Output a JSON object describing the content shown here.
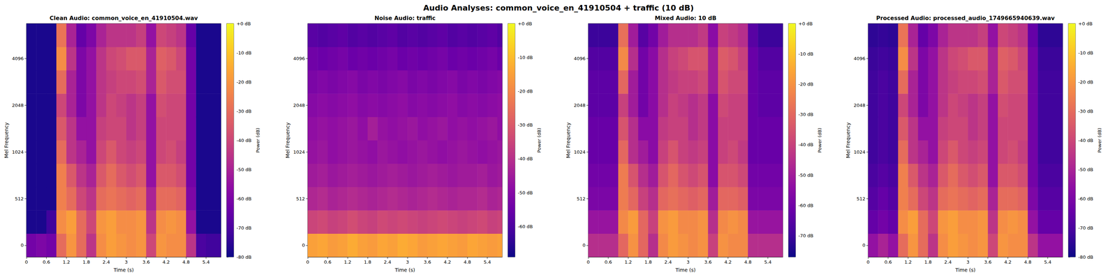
{
  "title": "Audio Analyses: common_voice_en_41910504 + traffic (10 dB)",
  "chart_data": [
    {
      "type": "heatmap",
      "title": "Clean Audio: common_voice_en_41910504.wav",
      "x_label": "Time (s)",
      "y_label": "Mel Frequency",
      "xlim": [
        0,
        5.85
      ],
      "xticks": [
        0,
        0.6,
        1.2,
        1.8,
        2.4,
        3,
        3.6,
        4.2,
        4.8,
        5.4
      ],
      "x_edges": [
        0,
        0.3,
        0.6,
        0.9,
        1.2,
        1.5,
        1.8,
        2.1,
        2.4,
        2.7,
        3,
        3.3,
        3.6,
        3.9,
        4.2,
        4.5,
        4.8,
        5.1,
        5.4,
        5.7,
        5.85
      ],
      "y_categories": [
        0,
        null,
        512,
        null,
        1024,
        null,
        2048,
        null,
        4096,
        null
      ],
      "cells": [
        [
          -62,
          -60,
          -62,
          -30,
          -20,
          -30,
          -45,
          -22,
          -18,
          -20,
          -22,
          -20,
          -40,
          -20,
          -22,
          -22,
          -45,
          -70,
          -72,
          -72
        ],
        [
          -78,
          -78,
          -72,
          -22,
          -18,
          -30,
          -40,
          -20,
          -18,
          -22,
          -22,
          -20,
          -45,
          -22,
          -20,
          -22,
          -55,
          -78,
          -78,
          -78
        ],
        [
          -78,
          -78,
          -78,
          -25,
          -30,
          -40,
          -45,
          -30,
          -28,
          -30,
          -32,
          -30,
          -50,
          -30,
          -30,
          -32,
          -60,
          -78,
          -78,
          -78
        ],
        [
          -78,
          -78,
          -78,
          -25,
          -35,
          -45,
          -50,
          -35,
          -30,
          -35,
          -38,
          -35,
          -55,
          -35,
          -35,
          -38,
          -62,
          -78,
          -78,
          -78
        ],
        [
          -78,
          -78,
          -78,
          -30,
          -45,
          -50,
          -55,
          -40,
          -35,
          -40,
          -42,
          -40,
          -55,
          -40,
          -38,
          -42,
          -62,
          -78,
          -78,
          -78
        ],
        [
          -78,
          -78,
          -78,
          -35,
          -45,
          -55,
          -55,
          -42,
          -40,
          -40,
          -45,
          -42,
          -55,
          -40,
          -40,
          -40,
          -62,
          -78,
          -78,
          -78
        ],
        [
          -78,
          -78,
          -78,
          -40,
          -50,
          -60,
          -55,
          -45,
          -40,
          -42,
          -45,
          -42,
          -55,
          -38,
          -40,
          -40,
          -62,
          -78,
          -78,
          -78
        ],
        [
          -78,
          -78,
          -78,
          -30,
          -50,
          -60,
          -55,
          -45,
          -42,
          -40,
          -40,
          -38,
          -50,
          -35,
          -38,
          -38,
          -62,
          -78,
          -78,
          -78
        ],
        [
          -78,
          -78,
          -78,
          -22,
          -45,
          -60,
          -55,
          -45,
          -40,
          -38,
          -35,
          -35,
          -50,
          -33,
          -35,
          -40,
          -62,
          -78,
          -78,
          -78
        ],
        [
          -78,
          -78,
          -78,
          -28,
          -50,
          -65,
          -60,
          -50,
          -45,
          -45,
          -45,
          -42,
          -55,
          -40,
          -42,
          -45,
          -65,
          -78,
          -78,
          -78
        ]
      ],
      "color": "plasma",
      "colorbar": {
        "label": "Power (dB)",
        "range": [
          -80,
          0
        ],
        "ticks": [
          {
            "value": 0,
            "label": "+0 dB"
          },
          {
            "value": -10,
            "label": "-10 dB"
          },
          {
            "value": -20,
            "label": "-20 dB"
          },
          {
            "value": -30,
            "label": "-30 dB"
          },
          {
            "value": -40,
            "label": "-40 dB"
          },
          {
            "value": -50,
            "label": "-50 dB"
          },
          {
            "value": -60,
            "label": "-60 dB"
          },
          {
            "value": -70,
            "label": "-70 dB"
          },
          {
            "value": -80,
            "label": "-80 dB"
          }
        ]
      }
    },
    {
      "type": "heatmap",
      "title": "Noise Audio: traffic",
      "x_label": "Time (s)",
      "y_label": "Mel Frequency",
      "xlim": [
        0,
        5.85
      ],
      "xticks": [
        0,
        0.6,
        1.2,
        1.8,
        2.4,
        3,
        3.6,
        4.2,
        4.8,
        5.4
      ],
      "x_edges": [
        0,
        0.3,
        0.6,
        0.9,
        1.2,
        1.5,
        1.8,
        2.1,
        2.4,
        2.7,
        3,
        3.3,
        3.6,
        3.9,
        4.2,
        4.5,
        4.8,
        5.1,
        5.4,
        5.7,
        5.85
      ],
      "y_categories": [
        0,
        null,
        512,
        null,
        1024,
        null,
        2048,
        null,
        4096,
        null
      ],
      "cells": [
        [
          -15,
          -14,
          -16,
          -15,
          -13,
          -15,
          -16,
          -14,
          -15,
          -13,
          -14,
          -16,
          -15,
          -14,
          -15,
          -16,
          -14,
          -15,
          -16,
          -15
        ],
        [
          -35,
          -34,
          -36,
          -35,
          -33,
          -35,
          -36,
          -34,
          -35,
          -34,
          -35,
          -36,
          -35,
          -34,
          -35,
          -36,
          -35,
          -34,
          -36,
          -35
        ],
        [
          -42,
          -41,
          -43,
          -42,
          -41,
          -42,
          -43,
          -42,
          -41,
          -42,
          -43,
          -42,
          -41,
          -42,
          -43,
          -42,
          -42,
          -41,
          -43,
          -42
        ],
        [
          -45,
          -44,
          -46,
          -45,
          -44,
          -45,
          -46,
          -45,
          -44,
          -45,
          -46,
          -45,
          -44,
          -45,
          -46,
          -45,
          -45,
          -44,
          -46,
          -45
        ],
        [
          -47,
          -46,
          -48,
          -47,
          -46,
          -47,
          -48,
          -46,
          -47,
          -48,
          -47,
          -46,
          -47,
          -48,
          -47,
          -46,
          -47,
          -48,
          -47,
          -46
        ],
        [
          -48,
          -47,
          -48,
          -47,
          -46,
          -48,
          -44,
          -47,
          -48,
          -47,
          -46,
          -48,
          -47,
          -46,
          -48,
          -47,
          -48,
          -47,
          -46,
          -48
        ],
        [
          -50,
          -49,
          -50,
          -49,
          -48,
          -50,
          -49,
          -50,
          -49,
          -48,
          -50,
          -49,
          -50,
          -49,
          -48,
          -50,
          -49,
          -50,
          -49,
          -48
        ],
        [
          -52,
          -51,
          -52,
          -51,
          -50,
          -52,
          -51,
          -52,
          -51,
          -50,
          -52,
          -51,
          -52,
          -51,
          -50,
          -52,
          -51,
          -52,
          -51,
          -50
        ],
        [
          -54,
          -55,
          -54,
          -53,
          -55,
          -54,
          -55,
          -54,
          -53,
          -55,
          -54,
          -55,
          -54,
          -53,
          -55,
          -54,
          -55,
          -54,
          -53,
          -55
        ],
        [
          -58,
          -59,
          -58,
          -57,
          -59,
          -58,
          -59,
          -58,
          -57,
          -59,
          -58,
          -59,
          -58,
          -57,
          -59,
          -58,
          -59,
          -58,
          -57,
          -59
        ]
      ],
      "color": "plasma",
      "colorbar": {
        "label": "Power (dB)",
        "range": [
          -69,
          0
        ],
        "ticks": [
          {
            "value": 0,
            "label": "+0 dB"
          },
          {
            "value": -10,
            "label": "-10 dB"
          },
          {
            "value": -20,
            "label": "-20 dB"
          },
          {
            "value": -30,
            "label": "-30 dB"
          },
          {
            "value": -40,
            "label": "-40 dB"
          },
          {
            "value": -50,
            "label": "-50 dB"
          },
          {
            "value": -60,
            "label": "-60 dB"
          }
        ]
      }
    },
    {
      "type": "heatmap",
      "title": "Mixed Audio: 10 dB",
      "x_label": "Time (s)",
      "y_label": "Mel Frequency",
      "xlim": [
        0,
        5.85
      ],
      "xticks": [
        0,
        0.6,
        1.2,
        1.8,
        2.4,
        3,
        3.6,
        4.2,
        4.8,
        5.4
      ],
      "x_edges": [
        0,
        0.3,
        0.6,
        0.9,
        1.2,
        1.5,
        1.8,
        2.1,
        2.4,
        2.7,
        3,
        3.3,
        3.6,
        3.9,
        4.2,
        4.5,
        4.8,
        5.1,
        5.4,
        5.7,
        5.85
      ],
      "y_categories": [
        0,
        null,
        512,
        null,
        1024,
        null,
        2048,
        null,
        4096,
        null
      ],
      "cells": [
        [
          -45,
          -45,
          -45,
          -30,
          -20,
          -30,
          -45,
          -22,
          -18,
          -20,
          -22,
          -20,
          -40,
          -20,
          -22,
          -22,
          -45,
          -45,
          -45,
          -45
        ],
        [
          -52,
          -52,
          -52,
          -22,
          -18,
          -30,
          -40,
          -20,
          -18,
          -22,
          -22,
          -20,
          -45,
          -22,
          -20,
          -22,
          -52,
          -52,
          -52,
          -52
        ],
        [
          -58,
          -58,
          -58,
          -25,
          -30,
          -40,
          -45,
          -30,
          -28,
          -30,
          -32,
          -30,
          -50,
          -30,
          -30,
          -32,
          -58,
          -58,
          -58,
          -58
        ],
        [
          -60,
          -60,
          -60,
          -25,
          -35,
          -45,
          -50,
          -35,
          -30,
          -35,
          -38,
          -35,
          -55,
          -35,
          -35,
          -38,
          -60,
          -60,
          -60,
          -60
        ],
        [
          -62,
          -62,
          -62,
          -30,
          -45,
          -50,
          -55,
          -40,
          -35,
          -40,
          -42,
          -40,
          -55,
          -40,
          -38,
          -42,
          -62,
          -62,
          -62,
          -62
        ],
        [
          -62,
          -62,
          -62,
          -35,
          -45,
          -55,
          -55,
          -42,
          -40,
          -40,
          -45,
          -42,
          -55,
          -40,
          -40,
          -40,
          -62,
          -62,
          -62,
          -62
        ],
        [
          -64,
          -64,
          -64,
          -40,
          -50,
          -60,
          -55,
          -45,
          -40,
          -42,
          -45,
          -42,
          -55,
          -38,
          -40,
          -40,
          -62,
          -64,
          -64,
          -64
        ],
        [
          -64,
          -64,
          -64,
          -30,
          -50,
          -60,
          -55,
          -45,
          -42,
          -40,
          -40,
          -38,
          -50,
          -35,
          -38,
          -38,
          -62,
          -64,
          -64,
          -64
        ],
        [
          -66,
          -66,
          -66,
          -22,
          -45,
          -60,
          -55,
          -45,
          -40,
          -38,
          -35,
          -35,
          -50,
          -33,
          -35,
          -40,
          -62,
          -66,
          -66,
          -66
        ],
        [
          -70,
          -70,
          -70,
          -28,
          -50,
          -65,
          -60,
          -50,
          -45,
          -45,
          -45,
          -42,
          -55,
          -40,
          -42,
          -45,
          -65,
          -70,
          -70,
          -70
        ]
      ],
      "color": "plasma",
      "colorbar": {
        "label": "Power (dB)",
        "range": [
          -77,
          0
        ],
        "ticks": [
          {
            "value": 0,
            "label": "+0 dB"
          },
          {
            "value": -10,
            "label": "-10 dB"
          },
          {
            "value": -20,
            "label": "-20 dB"
          },
          {
            "value": -30,
            "label": "-30 dB"
          },
          {
            "value": -40,
            "label": "-40 dB"
          },
          {
            "value": -50,
            "label": "-50 dB"
          },
          {
            "value": -60,
            "label": "-60 dB"
          },
          {
            "value": -70,
            "label": "-70 dB"
          }
        ]
      }
    },
    {
      "type": "heatmap",
      "title": "Processed Audio: processed_audio_1749665940639.wav",
      "x_label": "Time (s)",
      "y_label": "Mel Frequency",
      "xlim": [
        0,
        5.85
      ],
      "xticks": [
        0,
        0.6,
        1.2,
        1.8,
        2.4,
        3,
        3.6,
        4.2,
        4.8,
        5.4
      ],
      "x_edges": [
        0,
        0.3,
        0.6,
        0.9,
        1.2,
        1.5,
        1.8,
        2.1,
        2.4,
        2.7,
        3,
        3.3,
        3.6,
        3.9,
        4.2,
        4.5,
        4.8,
        5.1,
        5.4,
        5.7,
        5.85
      ],
      "y_categories": [
        0,
        null,
        512,
        null,
        1024,
        null,
        2048,
        null,
        4096,
        null
      ],
      "cells": [
        [
          -55,
          -50,
          -55,
          -30,
          -20,
          -30,
          -45,
          -22,
          -18,
          -20,
          -22,
          -20,
          -40,
          -20,
          -22,
          -22,
          -45,
          -55,
          -55,
          -55
        ],
        [
          -65,
          -62,
          -65,
          -22,
          -18,
          -30,
          -40,
          -20,
          -18,
          -22,
          -22,
          -20,
          -45,
          -22,
          -20,
          -22,
          -55,
          -65,
          -65,
          -65
        ],
        [
          -68,
          -65,
          -68,
          -25,
          -30,
          -40,
          -45,
          -30,
          -28,
          -30,
          -32,
          -30,
          -50,
          -30,
          -30,
          -32,
          -60,
          -68,
          -68,
          -68
        ],
        [
          -70,
          -68,
          -70,
          -25,
          -35,
          -45,
          -50,
          -35,
          -30,
          -35,
          -38,
          -35,
          -55,
          -35,
          -35,
          -38,
          -62,
          -70,
          -70,
          -70
        ],
        [
          -72,
          -70,
          -72,
          -30,
          -45,
          -50,
          -55,
          -40,
          -35,
          -40,
          -42,
          -40,
          -55,
          -40,
          -38,
          -42,
          -62,
          -72,
          -72,
          -72
        ],
        [
          -72,
          -70,
          -72,
          -35,
          -45,
          -55,
          -55,
          -42,
          -40,
          -40,
          -45,
          -42,
          -55,
          -40,
          -40,
          -40,
          -62,
          -72,
          -72,
          -72
        ],
        [
          -72,
          -70,
          -72,
          -40,
          -50,
          -60,
          -55,
          -45,
          -40,
          -42,
          -45,
          -42,
          -55,
          -38,
          -40,
          -40,
          -62,
          -72,
          -72,
          -72
        ],
        [
          -72,
          -70,
          -72,
          -30,
          -50,
          -60,
          -55,
          -45,
          -42,
          -40,
          -40,
          -38,
          -50,
          -35,
          -38,
          -38,
          -62,
          -72,
          -72,
          -72
        ],
        [
          -73,
          -72,
          -73,
          -22,
          -45,
          -60,
          -55,
          -45,
          -40,
          -38,
          -35,
          -35,
          -50,
          -33,
          -35,
          -40,
          -62,
          -73,
          -73,
          -73
        ],
        [
          -75,
          -74,
          -75,
          -28,
          -50,
          -65,
          -60,
          -50,
          -45,
          -45,
          -45,
          -42,
          -55,
          -40,
          -42,
          -45,
          -65,
          -75,
          -75,
          -75
        ]
      ],
      "color": "plasma",
      "colorbar": {
        "label": "Power (dB)",
        "range": [
          -80,
          0
        ],
        "ticks": [
          {
            "value": 0,
            "label": "+0 dB"
          },
          {
            "value": -10,
            "label": "-10 dB"
          },
          {
            "value": -20,
            "label": "-20 dB"
          },
          {
            "value": -30,
            "label": "-30 dB"
          },
          {
            "value": -40,
            "label": "-40 dB"
          },
          {
            "value": -50,
            "label": "-50 dB"
          },
          {
            "value": -60,
            "label": "-60 dB"
          },
          {
            "value": -70,
            "label": "-70 dB"
          },
          {
            "value": -80,
            "label": "-80 dB"
          }
        ]
      }
    }
  ]
}
